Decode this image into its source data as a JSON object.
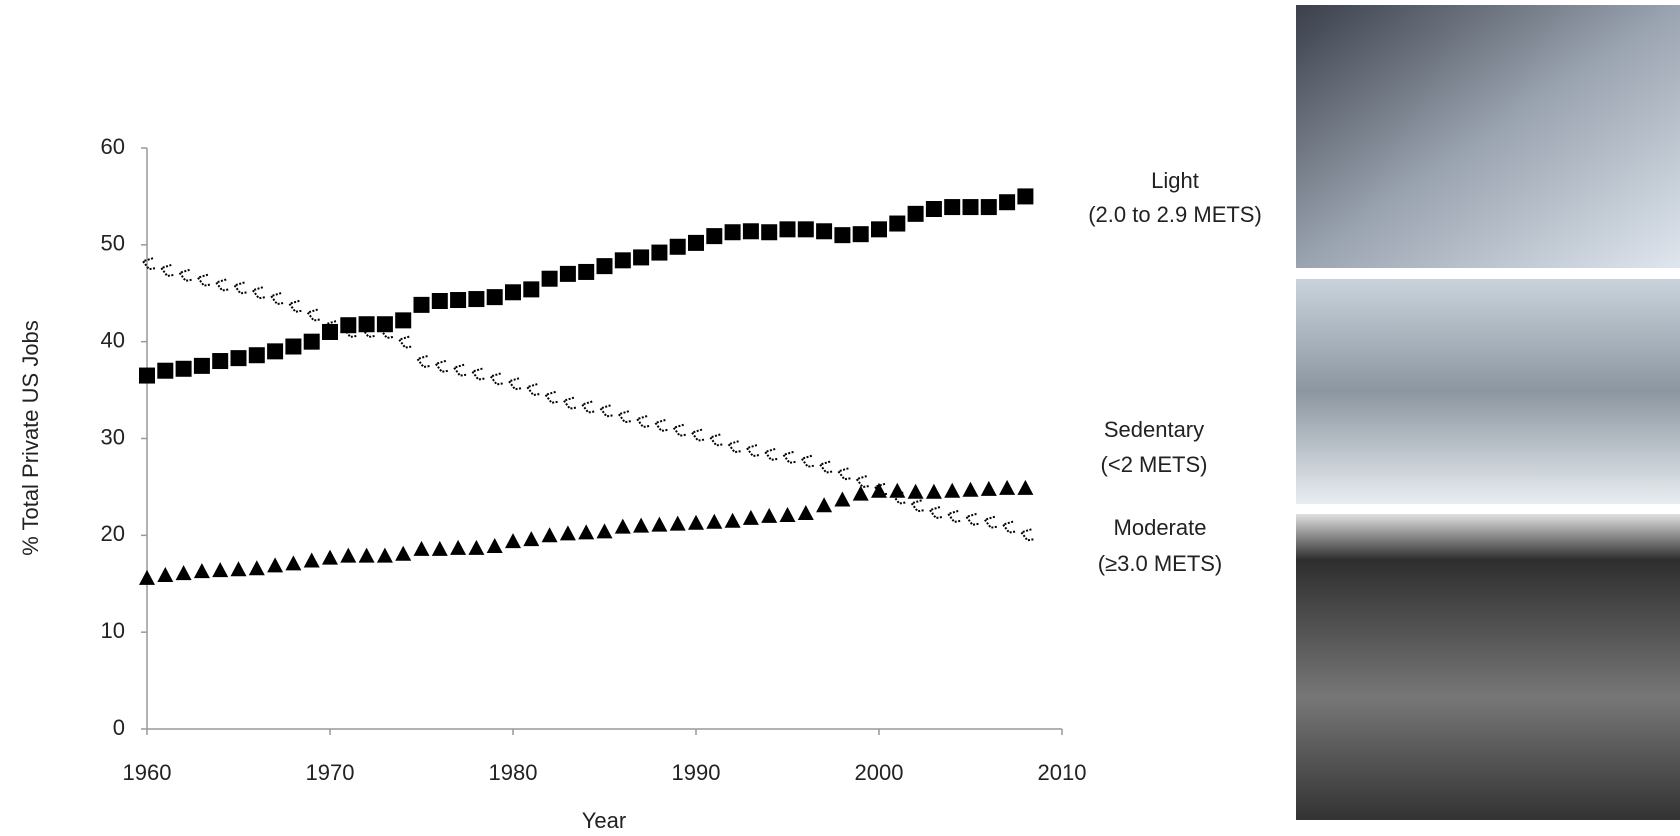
{
  "chart_data": {
    "type": "scatter",
    "xlabel": "Year",
    "ylabel": "% Total Private US Jobs",
    "x": [
      1960,
      1961,
      1962,
      1963,
      1964,
      1965,
      1966,
      1967,
      1968,
      1969,
      1970,
      1971,
      1972,
      1973,
      1974,
      1975,
      1976,
      1977,
      1978,
      1979,
      1980,
      1981,
      1982,
      1983,
      1984,
      1985,
      1986,
      1987,
      1988,
      1989,
      1990,
      1991,
      1992,
      1993,
      1994,
      1995,
      1996,
      1997,
      1998,
      1999,
      2000,
      2001,
      2002,
      2003,
      2004,
      2005,
      2006,
      2007,
      2008
    ],
    "series": [
      {
        "name": "Light",
        "sublabel": "(2.0 to 2.9 METS)",
        "marker": "square",
        "color": "#000000",
        "values": [
          36.5,
          37,
          37.2,
          37.5,
          38,
          38.3,
          38.6,
          39,
          39.5,
          40,
          41,
          41.7,
          41.8,
          41.8,
          42.2,
          43.8,
          44.2,
          44.3,
          44.4,
          44.6,
          45.1,
          45.4,
          46.5,
          47,
          47.2,
          47.8,
          48.4,
          48.7,
          49.2,
          49.8,
          50.2,
          50.9,
          51.3,
          51.4,
          51.3,
          51.6,
          51.6,
          51.4,
          51,
          51.1,
          51.6,
          52.2,
          53.2,
          53.7,
          53.9,
          53.9,
          53.9,
          54.4,
          55
        ]
      },
      {
        "name": "Sedentary",
        "sublabel": "(<2 METS)",
        "marker": "hatched",
        "color": "#000000",
        "values": [
          48,
          47.3,
          46.8,
          46.3,
          45.8,
          45.5,
          45,
          44.4,
          43.6,
          42.7,
          41.5,
          41,
          41,
          40.9,
          39.9,
          37.9,
          37.4,
          37,
          36.6,
          36.1,
          35.6,
          35,
          34.2,
          33.6,
          33.2,
          32.8,
          32.2,
          31.7,
          31.3,
          30.8,
          30.3,
          29.8,
          29.1,
          28.7,
          28.3,
          28,
          27.6,
          27,
          26.3,
          25.5,
          24.7,
          23.8,
          23,
          22.3,
          21.9,
          21.6,
          21.3,
          20.8,
          20
        ]
      },
      {
        "name": "Moderate",
        "sublabel": "(≥3.0 METS)",
        "marker": "triangle",
        "color": "#000000",
        "values": [
          15.5,
          15.8,
          16,
          16.2,
          16.3,
          16.4,
          16.5,
          16.8,
          17,
          17.3,
          17.6,
          17.8,
          17.8,
          17.8,
          18,
          18.5,
          18.5,
          18.6,
          18.6,
          18.8,
          19.3,
          19.5,
          19.9,
          20.1,
          20.2,
          20.3,
          20.8,
          20.9,
          21,
          21.1,
          21.2,
          21.3,
          21.4,
          21.7,
          21.9,
          22,
          22.2,
          23,
          23.6,
          24.2,
          24.5,
          24.5,
          24.4,
          24.4,
          24.5,
          24.6,
          24.7,
          24.8,
          24.8
        ]
      }
    ],
    "xlim": [
      1960,
      2010
    ],
    "xticks": [
      1960,
      1970,
      1980,
      1990,
      2000,
      2010
    ],
    "ylim": [
      0,
      60
    ],
    "yticks": [
      0,
      10,
      20,
      30,
      40,
      50,
      60
    ],
    "grid": false
  }
}
